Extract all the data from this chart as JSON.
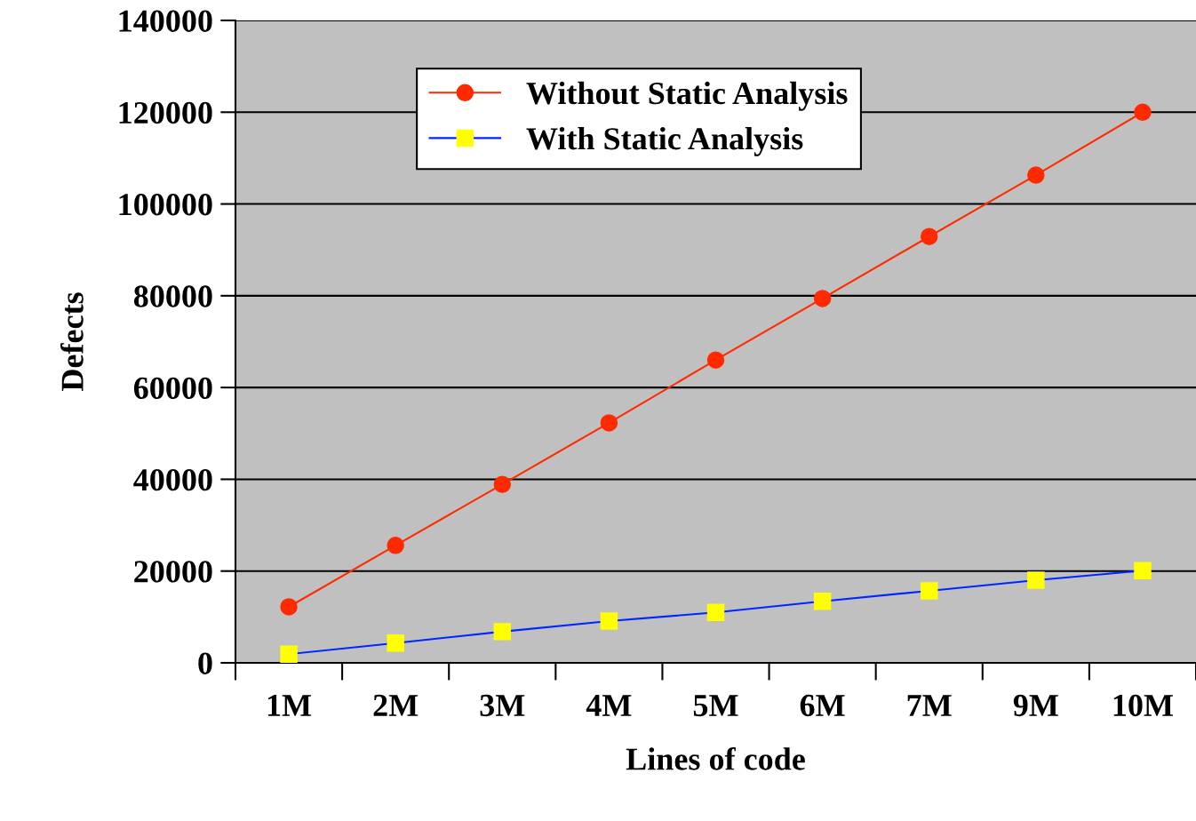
{
  "chart_data": {
    "type": "line",
    "xlabel": "Lines of code",
    "ylabel": "Defects",
    "categories": [
      "1M",
      "2M",
      "3M",
      "4M",
      "5M",
      "6M",
      "7M",
      "9M",
      "10M"
    ],
    "series": [
      {
        "name": "Without Static Analysis",
        "color": "#ff2a00",
        "marker": "circle",
        "values": [
          12200,
          25600,
          38900,
          52300,
          66000,
          79400,
          92900,
          106300,
          120000
        ]
      },
      {
        "name": "With Static Analysis",
        "color": "#0026ff",
        "marker": "square",
        "values": [
          1900,
          4300,
          6800,
          9100,
          11000,
          13400,
          15700,
          18000,
          20100
        ]
      }
    ],
    "ylim": [
      0,
      140000
    ],
    "yticks": [
      0,
      20000,
      40000,
      60000,
      80000,
      100000,
      120000,
      140000
    ],
    "grid": "y",
    "legend": "top"
  }
}
